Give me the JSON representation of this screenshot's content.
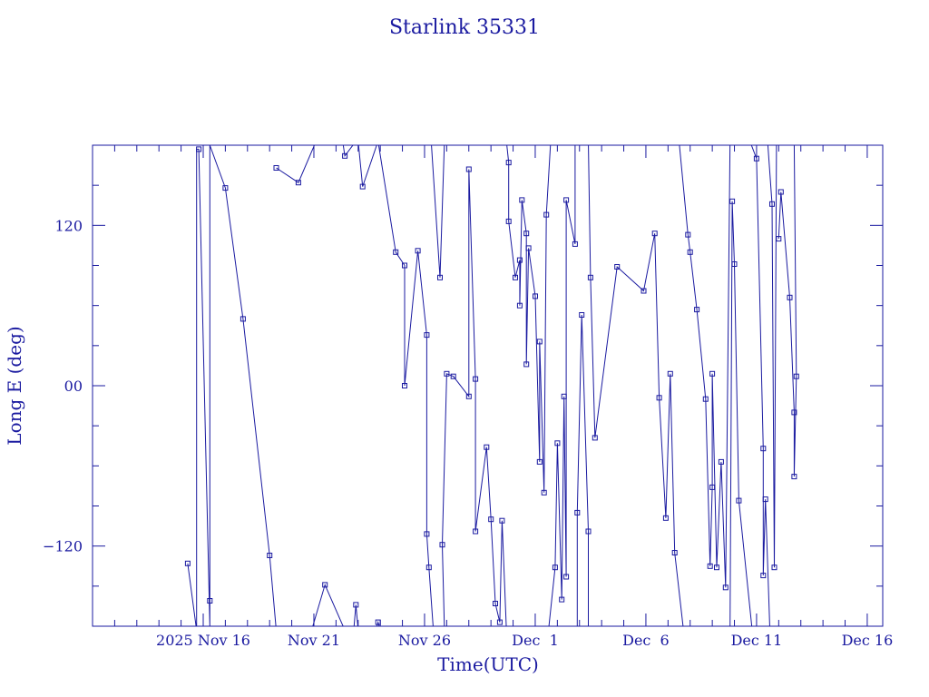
{
  "chart_data": {
    "type": "line",
    "title": "Starlink 35331",
    "xlabel": "Time(UTC)",
    "ylabel": "Long E (deg)",
    "x_is_days_from": "2025-11-11",
    "xlim": [
      0.0,
      35.7
    ],
    "ylim": [
      -180,
      180
    ],
    "xticks": [
      {
        "day": 5,
        "label": "2025 Nov 16"
      },
      {
        "day": 10,
        "label": "Nov 21"
      },
      {
        "day": 15,
        "label": "Nov 26"
      },
      {
        "day": 20,
        "label": "Dec  1"
      },
      {
        "day": 25,
        "label": "Dec  6"
      },
      {
        "day": 30,
        "label": "Dec 11"
      },
      {
        "day": 35,
        "label": "Dec 16"
      }
    ],
    "yticks": [
      {
        "value": 120,
        "label": "120"
      },
      {
        "value": 0,
        "label": "00"
      },
      {
        "value": -120,
        "label": "−120"
      }
    ],
    "grid": false,
    "color": "#1a1aa0",
    "series": [
      {
        "points": [
          [
            4.3,
            -133
          ],
          [
            4.7,
            -183
          ],
          [
            4.7,
            177
          ],
          [
            4.8,
            177
          ],
          [
            5.3,
            -180
          ],
          [
            5.3,
            180
          ],
          [
            6.0,
            148
          ],
          [
            6.8,
            50
          ],
          [
            8.0,
            -127
          ],
          [
            8.3,
            -183
          ]
        ]
      },
      {
        "points": [
          [
            8.3,
            163
          ],
          [
            9.3,
            152
          ],
          [
            10.1,
            183
          ]
        ]
      },
      {
        "points": [
          [
            9.9,
            -183
          ],
          [
            10.5,
            -149
          ],
          [
            11.4,
            -183
          ]
        ]
      },
      {
        "points": [
          [
            11.3,
            183
          ],
          [
            11.4,
            172
          ],
          [
            11.9,
            183
          ]
        ]
      },
      {
        "points": [
          [
            11.8,
            -183
          ],
          [
            11.9,
            -164
          ],
          [
            12.0,
            -183
          ]
        ]
      },
      {
        "points": [
          [
            12.0,
            183
          ],
          [
            12.2,
            149
          ],
          [
            12.9,
            183
          ]
        ]
      },
      {
        "points": [
          [
            12.8,
            -183
          ],
          [
            12.9,
            -177
          ],
          [
            13.0,
            -183
          ]
        ]
      },
      {
        "points": [
          [
            12.9,
            183
          ],
          [
            13.7,
            100
          ],
          [
            14.1,
            90
          ],
          [
            14.1,
            0
          ],
          [
            14.7,
            101
          ],
          [
            15.1,
            38
          ],
          [
            15.1,
            -111
          ],
          [
            15.2,
            -136
          ],
          [
            15.4,
            -183
          ]
        ]
      },
      {
        "points": [
          [
            15.3,
            183
          ],
          [
            15.7,
            81
          ],
          [
            15.9,
            183
          ]
        ]
      },
      {
        "points": [
          [
            15.9,
            -183
          ],
          [
            15.8,
            -119
          ],
          [
            16.0,
            9
          ],
          [
            16.3,
            7
          ],
          [
            17.0,
            -8
          ],
          [
            17.0,
            162
          ],
          [
            17.3,
            5
          ],
          [
            17.3,
            -109
          ],
          [
            17.8,
            -46
          ],
          [
            18.0,
            -100
          ],
          [
            18.2,
            -163
          ],
          [
            18.4,
            -177
          ],
          [
            18.5,
            -101
          ],
          [
            18.7,
            -183
          ]
        ]
      },
      {
        "points": [
          [
            18.7,
            183
          ],
          [
            18.8,
            167
          ],
          [
            18.8,
            123
          ],
          [
            19.1,
            81
          ],
          [
            19.3,
            94
          ],
          [
            19.3,
            60
          ],
          [
            19.4,
            139
          ],
          [
            19.6,
            114
          ],
          [
            19.6,
            16
          ],
          [
            19.7,
            103
          ],
          [
            20.0,
            67
          ],
          [
            20.2,
            -57
          ],
          [
            20.2,
            33
          ],
          [
            20.4,
            -80
          ],
          [
            20.5,
            128
          ],
          [
            20.7,
            183
          ]
        ]
      },
      {
        "points": [
          [
            20.6,
            -183
          ],
          [
            20.9,
            -136
          ],
          [
            21.0,
            -43
          ],
          [
            21.2,
            -160
          ],
          [
            21.3,
            -8
          ],
          [
            21.4,
            -143
          ],
          [
            21.4,
            139
          ],
          [
            21.8,
            106
          ],
          [
            21.8,
            183
          ]
        ]
      },
      {
        "points": [
          [
            21.9,
            -183
          ],
          [
            21.9,
            -95
          ],
          [
            22.1,
            53
          ],
          [
            22.4,
            -109
          ],
          [
            22.4,
            -183
          ]
        ]
      },
      {
        "points": [
          [
            22.4,
            183
          ],
          [
            22.5,
            81
          ],
          [
            22.7,
            -39
          ],
          [
            23.7,
            89
          ],
          [
            24.9,
            71
          ],
          [
            25.4,
            114
          ],
          [
            25.6,
            -9
          ],
          [
            25.9,
            -99
          ],
          [
            26.1,
            9
          ],
          [
            26.3,
            -125
          ],
          [
            26.7,
            -183
          ]
        ]
      },
      {
        "points": [
          [
            26.5,
            183
          ],
          [
            26.9,
            113
          ],
          [
            27.0,
            100
          ],
          [
            27.3,
            57
          ],
          [
            27.7,
            -10
          ],
          [
            27.9,
            -135
          ],
          [
            28.0,
            -76
          ],
          [
            28.0,
            9
          ],
          [
            28.2,
            -136
          ],
          [
            28.4,
            -57
          ],
          [
            28.6,
            -151
          ],
          [
            28.8,
            183
          ]
        ]
      },
      {
        "points": [
          [
            28.8,
            -183
          ],
          [
            28.9,
            138
          ],
          [
            29.0,
            91
          ],
          [
            29.2,
            -86
          ],
          [
            29.8,
            -183
          ]
        ]
      },
      {
        "points": [
          [
            29.7,
            183
          ],
          [
            30.0,
            170
          ],
          [
            30.3,
            -47
          ],
          [
            30.3,
            -142
          ],
          [
            30.4,
            -85
          ],
          [
            30.6,
            -183
          ]
        ]
      },
      {
        "points": [
          [
            30.5,
            183
          ],
          [
            30.7,
            136
          ],
          [
            30.8,
            -136
          ],
          [
            30.9,
            183
          ]
        ]
      },
      {
        "points": [
          [
            31.0,
            110
          ],
          [
            31.1,
            145
          ],
          [
            31.5,
            66
          ],
          [
            31.7,
            -20
          ],
          [
            31.7,
            -68
          ],
          [
            31.8,
            7
          ],
          [
            31.7,
            183
          ]
        ]
      }
    ],
    "markers": [
      [
        4.3,
        -133
      ],
      [
        4.8,
        177
      ],
      [
        5.3,
        -161
      ],
      [
        6.0,
        148
      ],
      [
        6.8,
        50
      ],
      [
        8.0,
        -127
      ],
      [
        8.3,
        163
      ],
      [
        9.3,
        152
      ],
      [
        10.5,
        -149
      ],
      [
        11.4,
        172
      ],
      [
        11.9,
        -164
      ],
      [
        12.2,
        149
      ],
      [
        12.9,
        -177
      ],
      [
        13.7,
        100
      ],
      [
        14.1,
        90
      ],
      [
        14.1,
        0
      ],
      [
        14.7,
        101
      ],
      [
        15.1,
        38
      ],
      [
        15.1,
        -111
      ],
      [
        15.2,
        -136
      ],
      [
        15.7,
        81
      ],
      [
        15.8,
        -119
      ],
      [
        16.0,
        9
      ],
      [
        16.3,
        7
      ],
      [
        17.0,
        -8
      ],
      [
        17.0,
        162
      ],
      [
        17.3,
        5
      ],
      [
        17.3,
        -109
      ],
      [
        17.8,
        -46
      ],
      [
        18.0,
        -100
      ],
      [
        18.2,
        -163
      ],
      [
        18.4,
        -177
      ],
      [
        18.5,
        -101
      ],
      [
        18.8,
        167
      ],
      [
        18.8,
        123
      ],
      [
        19.1,
        81
      ],
      [
        19.3,
        94
      ],
      [
        19.3,
        60
      ],
      [
        19.4,
        139
      ],
      [
        19.6,
        114
      ],
      [
        19.6,
        16
      ],
      [
        19.7,
        103
      ],
      [
        20.0,
        67
      ],
      [
        20.2,
        -57
      ],
      [
        20.2,
        33
      ],
      [
        20.4,
        -80
      ],
      [
        20.5,
        128
      ],
      [
        20.9,
        -136
      ],
      [
        21.0,
        -43
      ],
      [
        21.2,
        -160
      ],
      [
        21.3,
        -8
      ],
      [
        21.4,
        -143
      ],
      [
        21.4,
        139
      ],
      [
        21.8,
        106
      ],
      [
        21.9,
        -95
      ],
      [
        22.1,
        53
      ],
      [
        22.4,
        -109
      ],
      [
        22.5,
        81
      ],
      [
        22.7,
        -39
      ],
      [
        23.7,
        89
      ],
      [
        24.9,
        71
      ],
      [
        25.4,
        114
      ],
      [
        25.6,
        -9
      ],
      [
        25.9,
        -99
      ],
      [
        26.1,
        9
      ],
      [
        26.3,
        -125
      ],
      [
        26.9,
        113
      ],
      [
        27.0,
        100
      ],
      [
        27.3,
        57
      ],
      [
        27.7,
        -10
      ],
      [
        27.9,
        -135
      ],
      [
        28.0,
        -76
      ],
      [
        28.0,
        9
      ],
      [
        28.2,
        -136
      ],
      [
        28.4,
        -57
      ],
      [
        28.6,
        -151
      ],
      [
        28.9,
        138
      ],
      [
        29.0,
        91
      ],
      [
        29.2,
        -86
      ],
      [
        30.0,
        170
      ],
      [
        30.3,
        -47
      ],
      [
        30.3,
        -142
      ],
      [
        30.4,
        -85
      ],
      [
        30.7,
        136
      ],
      [
        30.8,
        -136
      ],
      [
        31.0,
        110
      ],
      [
        31.1,
        145
      ],
      [
        31.5,
        66
      ],
      [
        31.7,
        -20
      ],
      [
        31.7,
        -68
      ],
      [
        31.8,
        7
      ]
    ]
  }
}
